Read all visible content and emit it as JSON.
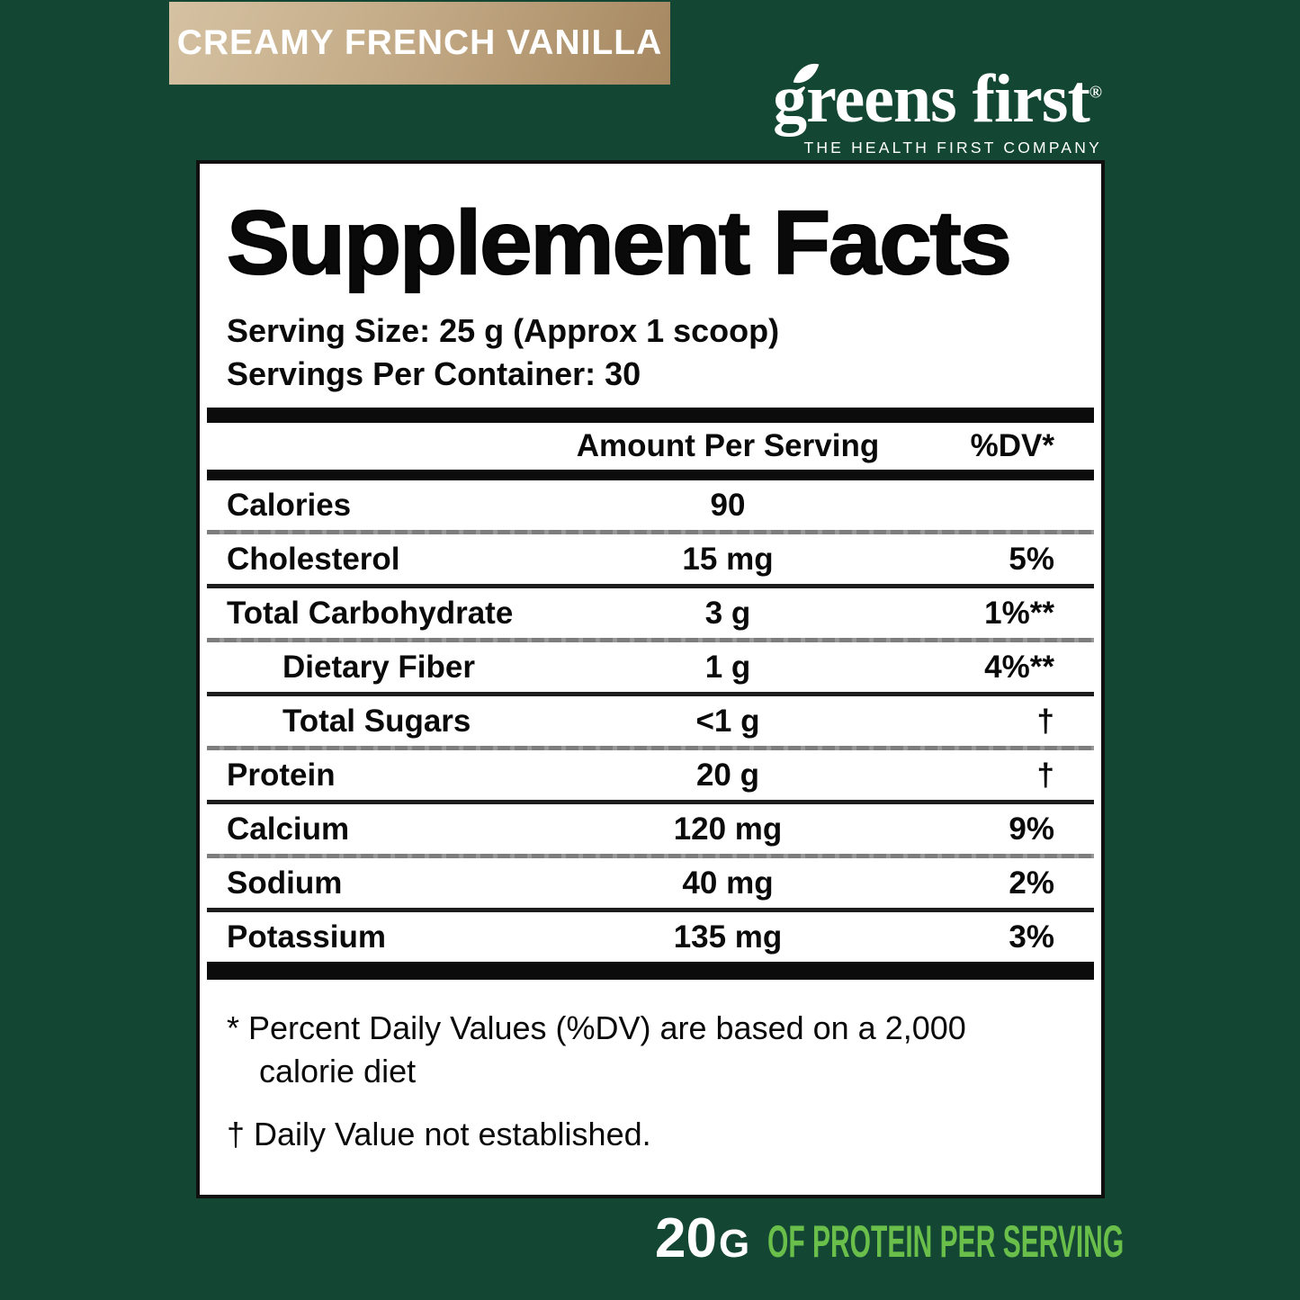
{
  "colors": {
    "background_green": "#134734",
    "badge_tan_start": "#d5c2a2",
    "badge_tan_end": "#a58760",
    "accent_green": "#6abf4b",
    "panel_background": "#ffffff",
    "panel_border": "#101010",
    "text_black": "#0a0a0a",
    "text_white": "#ffffff"
  },
  "badge": {
    "text": "CREAMY FRENCH VANILLA"
  },
  "brand": {
    "wordmark": "greens first",
    "registered": "®",
    "tagline": "THE HEALTH FIRST COMPANY",
    "leaf_icon": "leaf accent over the letter g"
  },
  "panel": {
    "title": "Supplement Facts",
    "serving_size": "Serving Size: 25 g (Approx 1 scoop)",
    "servings_per_container": "Servings Per Container: 30",
    "table": {
      "amount_header": "Amount Per Serving",
      "dv_header": "%DV*",
      "rows": [
        {
          "label": "Calories",
          "amount": "90",
          "dv": "",
          "indent": false,
          "sep": "gray"
        },
        {
          "label": "Cholesterol",
          "amount": "15 mg",
          "dv": "5%",
          "indent": false,
          "sep": "dark"
        },
        {
          "label": "Total Carbohydrate",
          "amount": "3 g",
          "dv": "1%**",
          "indent": false,
          "sep": "gray"
        },
        {
          "label": "Dietary Fiber",
          "amount": "1 g",
          "dv": "4%**",
          "indent": true,
          "sep": "dark"
        },
        {
          "label": "Total Sugars",
          "amount": "<1 g",
          "dv": "†",
          "indent": true,
          "sep": "gray"
        },
        {
          "label": "Protein",
          "amount": "20 g",
          "dv": "†",
          "indent": false,
          "sep": "dark"
        },
        {
          "label": "Calcium",
          "amount": "120 mg",
          "dv": "9%",
          "indent": false,
          "sep": "gray"
        },
        {
          "label": "Sodium",
          "amount": "40 mg",
          "dv": "2%",
          "indent": false,
          "sep": "dark"
        },
        {
          "label": "Potassium",
          "amount": "135 mg",
          "dv": "3%",
          "indent": false,
          "sep": null
        }
      ]
    },
    "footnotes": [
      "* Percent Daily Values (%DV) are based on a 2,000 calorie diet",
      "† Daily Value not established."
    ]
  },
  "claim": {
    "amount": "20",
    "unit": "G",
    "text": "OF PROTEIN PER SERVING"
  }
}
